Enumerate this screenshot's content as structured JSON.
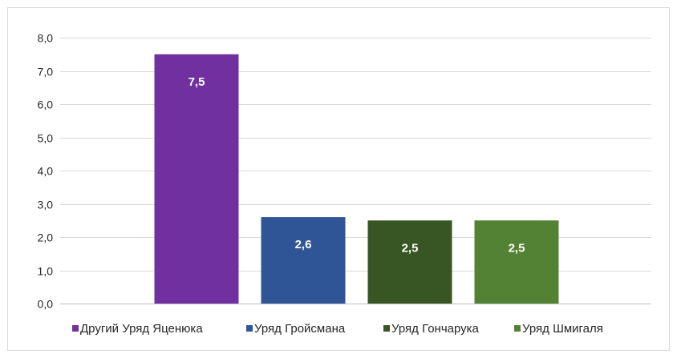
{
  "chart_data": {
    "type": "bar",
    "categories": [
      "Другий Уряд Яценюка",
      "Уряд Гройсмана",
      "Уряд Гончарука",
      "Уряд Шмигаля"
    ],
    "values": [
      7.5,
      2.6,
      2.5,
      2.5
    ],
    "value_labels": [
      "7,5",
      "2,6",
      "2,5",
      "2,5"
    ],
    "colors": [
      "#7030a0",
      "#2f5597",
      "#375623",
      "#548235"
    ],
    "ylim": [
      0,
      8
    ],
    "y_ticks": [
      0,
      1,
      2,
      3,
      4,
      5,
      6,
      7,
      8
    ],
    "y_tick_labels": [
      "0,0",
      "1,0",
      "2,0",
      "3,0",
      "4,0",
      "5,0",
      "6,0",
      "7,0",
      "8,0"
    ],
    "grid": true,
    "legend": "bottom",
    "title": "",
    "xlabel": "",
    "ylabel": ""
  }
}
